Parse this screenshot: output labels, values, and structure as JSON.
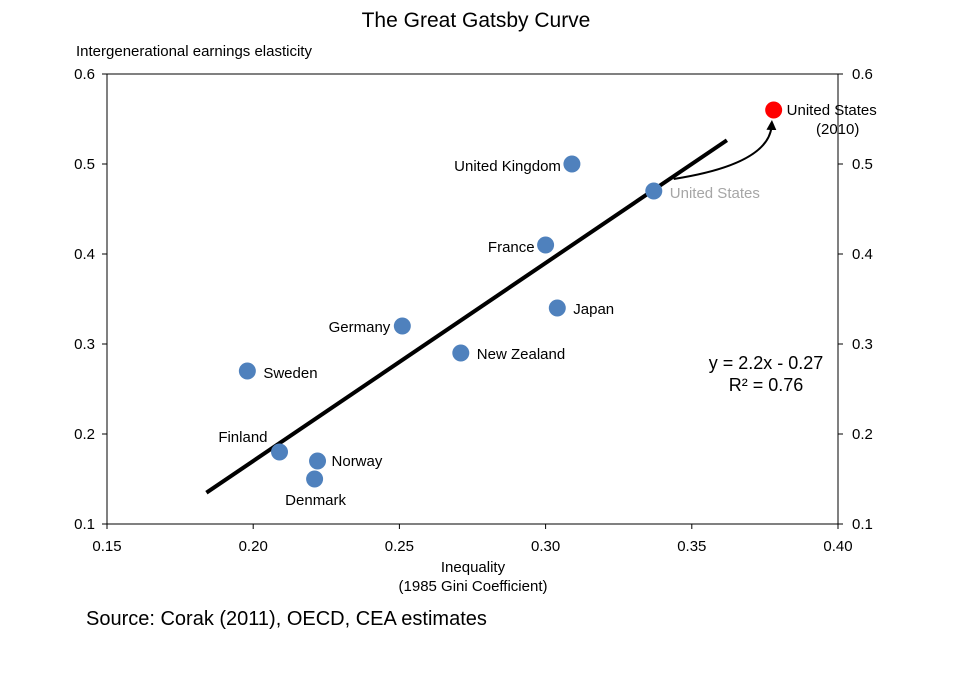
{
  "chart_data": {
    "type": "scatter",
    "title": "The Great Gatsby Curve",
    "ylabel": "Intergenerational earnings elasticity",
    "xlabel_lines": [
      "Inequality",
      "(1985 Gini Coefficient)"
    ],
    "xlim": [
      0.15,
      0.4
    ],
    "ylim": [
      0.1,
      0.6
    ],
    "x_ticks": [
      "0.15",
      "0.20",
      "0.25",
      "0.30",
      "0.35",
      "0.40"
    ],
    "y_ticks": [
      "0.1",
      "0.2",
      "0.3",
      "0.4",
      "0.5",
      "0.6"
    ],
    "grid": false,
    "points": [
      {
        "label": "United Kingdom",
        "x": 0.309,
        "y": 0.5,
        "color": "#4f81bd"
      },
      {
        "label": "United States",
        "x": 0.337,
        "y": 0.47,
        "color": "#4f81bd",
        "muted": true
      },
      {
        "label": "France",
        "x": 0.3,
        "y": 0.41,
        "color": "#4f81bd"
      },
      {
        "label": "Japan",
        "x": 0.304,
        "y": 0.34,
        "color": "#4f81bd"
      },
      {
        "label": "Germany",
        "x": 0.251,
        "y": 0.32,
        "color": "#4f81bd"
      },
      {
        "label": "New Zealand",
        "x": 0.271,
        "y": 0.29,
        "color": "#4f81bd"
      },
      {
        "label": "Sweden",
        "x": 0.198,
        "y": 0.27,
        "color": "#4f81bd"
      },
      {
        "label": "Finland",
        "x": 0.209,
        "y": 0.18,
        "color": "#4f81bd"
      },
      {
        "label": "Norway",
        "x": 0.222,
        "y": 0.17,
        "color": "#4f81bd"
      },
      {
        "label": "Denmark",
        "x": 0.221,
        "y": 0.15,
        "color": "#4f81bd"
      }
    ],
    "highlight_point": {
      "label_lines": [
        "United States",
        "(2010)"
      ],
      "x": 0.378,
      "y": 0.56,
      "color": "#ff0000"
    },
    "trendline": {
      "x_start": 0.184,
      "x_end": 0.362,
      "slope": 2.2,
      "intercept": -0.27
    },
    "equation_lines": [
      "y = 2.2x - 0.27",
      "R² = 0.76"
    ],
    "source": "Source: Corak (2011), OECD, CEA estimates"
  }
}
